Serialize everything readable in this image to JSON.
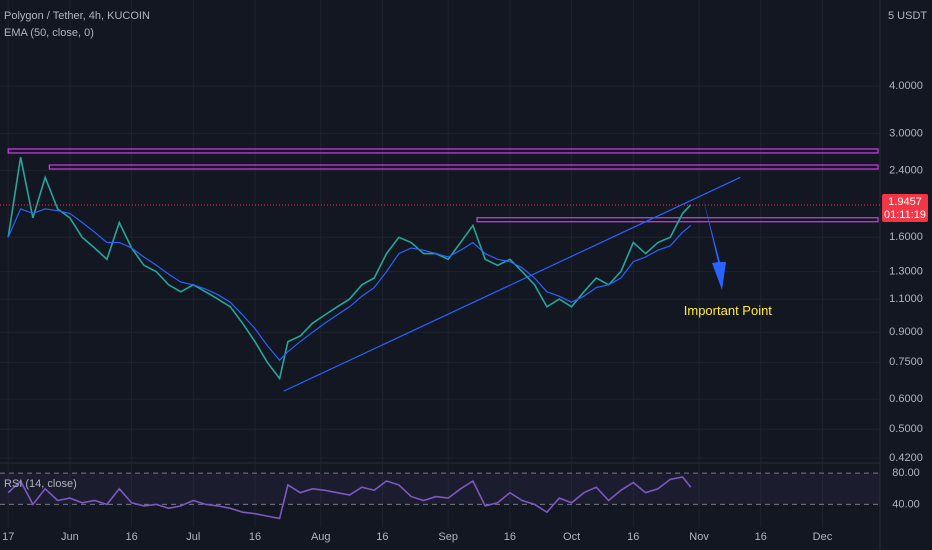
{
  "chart_data": [
    {
      "type": "line",
      "title": "Polygon / Tether, 4h, KUCOIN",
      "subtitle": "EMA (50, close, 0)",
      "unit": "5 USDT",
      "log": true,
      "grid": true,
      "x": [
        0,
        3,
        6,
        9,
        12,
        15,
        18,
        21,
        24,
        27,
        30,
        33,
        36,
        39,
        42,
        45,
        48,
        51,
        54,
        57,
        60,
        63,
        66,
        68,
        71,
        74,
        77,
        80,
        83,
        86,
        89,
        92,
        95,
        98,
        101,
        104,
        107,
        110,
        113,
        116,
        119,
        122,
        125,
        128,
        131,
        134,
        137,
        140,
        143,
        146,
        149,
        152,
        155,
        158,
        161,
        164,
        166
      ],
      "series": [
        {
          "name": "Polygon / Tether",
          "color": "#26a69a",
          "values": [
            1.6,
            2.6,
            1.8,
            2.3,
            1.9,
            1.8,
            1.6,
            1.5,
            1.4,
            1.75,
            1.5,
            1.35,
            1.3,
            1.2,
            1.15,
            1.2,
            1.15,
            1.1,
            1.05,
            0.95,
            0.85,
            0.75,
            0.68,
            0.85,
            0.88,
            0.95,
            1.0,
            1.05,
            1.1,
            1.2,
            1.25,
            1.45,
            1.6,
            1.55,
            1.45,
            1.45,
            1.4,
            1.55,
            1.72,
            1.4,
            1.35,
            1.4,
            1.3,
            1.2,
            1.05,
            1.1,
            1.05,
            1.15,
            1.25,
            1.2,
            1.3,
            1.55,
            1.45,
            1.55,
            1.6,
            1.85,
            1.95
          ]
        },
        {
          "name": "EMA (50, close, 0)",
          "color": "#2962ff",
          "values": [
            1.6,
            1.9,
            1.85,
            1.9,
            1.88,
            1.85,
            1.75,
            1.65,
            1.55,
            1.55,
            1.5,
            1.42,
            1.35,
            1.28,
            1.22,
            1.2,
            1.17,
            1.13,
            1.08,
            1.0,
            0.92,
            0.83,
            0.76,
            0.8,
            0.85,
            0.9,
            0.95,
            1.0,
            1.05,
            1.12,
            1.18,
            1.3,
            1.45,
            1.5,
            1.48,
            1.45,
            1.42,
            1.48,
            1.55,
            1.45,
            1.4,
            1.38,
            1.33,
            1.25,
            1.15,
            1.12,
            1.08,
            1.12,
            1.18,
            1.2,
            1.25,
            1.38,
            1.42,
            1.48,
            1.52,
            1.65,
            1.72
          ]
        }
      ],
      "xlim": [
        -2,
        212
      ],
      "xticks": [
        {
          "value": 0,
          "label": "17"
        },
        {
          "value": 15,
          "label": "Jun"
        },
        {
          "value": 30,
          "label": "16"
        },
        {
          "value": 45,
          "label": "Jul"
        },
        {
          "value": 60,
          "label": "16"
        },
        {
          "value": 76,
          "label": "Aug"
        },
        {
          "value": 91,
          "label": "16"
        },
        {
          "value": 107,
          "label": "Sep"
        },
        {
          "value": 122,
          "label": "16"
        },
        {
          "value": 137,
          "label": "Oct"
        },
        {
          "value": 152,
          "label": "16"
        },
        {
          "value": 168,
          "label": "Nov"
        },
        {
          "value": 183,
          "label": "16"
        },
        {
          "value": 198,
          "label": "Dec"
        }
      ],
      "ylim": [
        0.41,
        6.74
      ],
      "yticks": [
        {
          "value": 4,
          "label": "4.0000"
        },
        {
          "value": 3,
          "label": "3.0000"
        },
        {
          "value": 2.4,
          "label": "2.4000"
        },
        {
          "value": 1.6,
          "label": "1.6000"
        },
        {
          "value": 1.3,
          "label": "1.3000"
        },
        {
          "value": 1.1,
          "label": "1.1000"
        },
        {
          "value": 0.9,
          "label": "0.9000"
        },
        {
          "value": 0.75,
          "label": "0.7500"
        },
        {
          "value": 0.6,
          "label": "0.6000"
        },
        {
          "value": 0.5,
          "label": "0.5000"
        },
        {
          "value": 0.42,
          "label": "0.4200"
        }
      ],
      "levels": [
        {
          "value": 2.7,
          "from": 0,
          "color": "#c339e0"
        },
        {
          "value": 2.45,
          "from": 10,
          "color": "#c339e0"
        },
        {
          "value": 1.78,
          "from": 114,
          "color": "#c339e0"
        }
      ],
      "trendline": {
        "x": [
          67,
          178
        ],
        "y": [
          0.63,
          2.3
        ],
        "color": "#2962ff"
      },
      "last_price": {
        "value": 1.9457,
        "countdown": "01:11:19",
        "color": "#f23645"
      },
      "annotation": {
        "text": "Important Point",
        "x": 175,
        "y": 1.02,
        "color": "#ffeb3b"
      }
    },
    {
      "type": "line",
      "title": "RSI (14, close)",
      "x": [
        0,
        3,
        6,
        9,
        12,
        15,
        18,
        21,
        24,
        27,
        30,
        33,
        36,
        39,
        42,
        45,
        48,
        51,
        54,
        57,
        60,
        63,
        66,
        68,
        71,
        74,
        77,
        80,
        83,
        86,
        89,
        92,
        95,
        98,
        101,
        104,
        107,
        110,
        113,
        116,
        119,
        122,
        125,
        128,
        131,
        134,
        137,
        140,
        143,
        146,
        149,
        152,
        155,
        158,
        161,
        164,
        166
      ],
      "series": [
        {
          "name": "RSI",
          "color": "#7e57c2",
          "values": [
            55,
            70,
            40,
            60,
            45,
            48,
            42,
            45,
            40,
            60,
            42,
            38,
            40,
            35,
            38,
            45,
            40,
            38,
            35,
            30,
            28,
            25,
            22,
            65,
            55,
            60,
            58,
            55,
            52,
            62,
            58,
            70,
            65,
            50,
            45,
            50,
            48,
            60,
            70,
            38,
            42,
            55,
            45,
            40,
            30,
            48,
            42,
            55,
            62,
            45,
            58,
            68,
            55,
            60,
            72,
            75,
            62
          ]
        }
      ],
      "ylim": [
        11,
        93
      ],
      "yticks": [
        {
          "value": 80,
          "label": "80.00"
        },
        {
          "value": 40,
          "label": "40.00"
        }
      ]
    }
  ]
}
